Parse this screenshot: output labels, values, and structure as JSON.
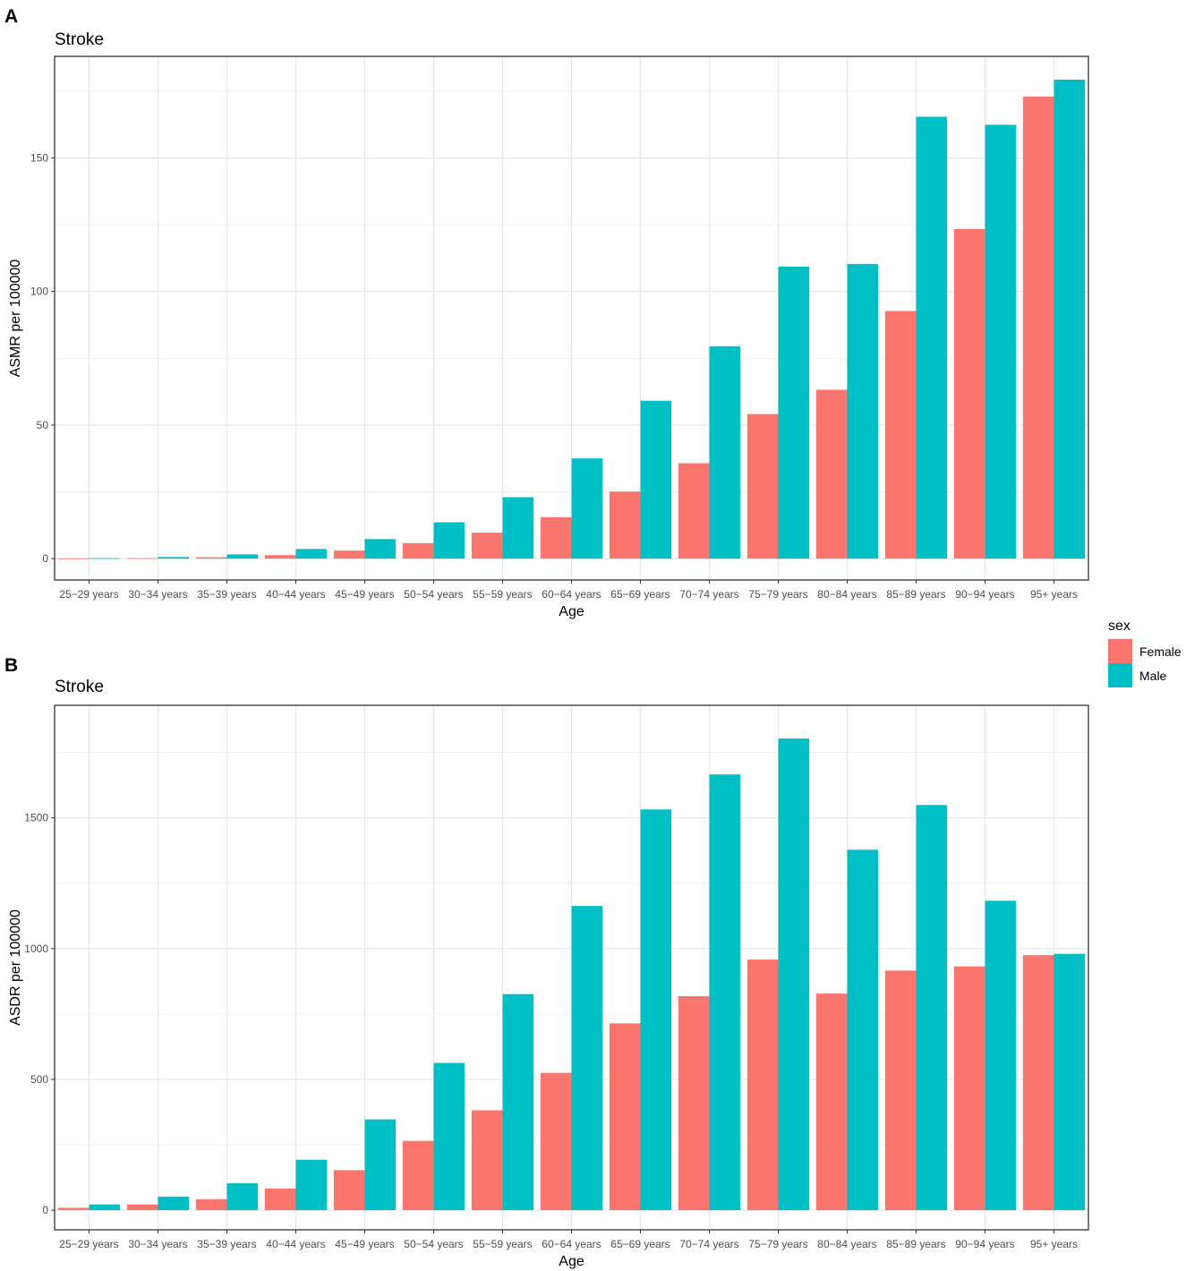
{
  "figure": {
    "legend": {
      "title": "sex",
      "items": [
        {
          "label": "Female",
          "color": "#F8766D"
        },
        {
          "label": "Male",
          "color": "#00BFC4"
        }
      ]
    }
  },
  "chart_data": [
    {
      "panel": "A",
      "type": "bar",
      "title": "Stroke",
      "xlabel": "Age",
      "ylabel": "ASMR per 100000",
      "ylim": [
        -8,
        188
      ],
      "yticks": [
        0,
        50,
        100,
        150
      ],
      "yticks_labels": [
        "0",
        "50",
        "100",
        "150"
      ],
      "categories": [
        "25−29 years",
        "30−34 years",
        "35−39 years",
        "40−44 years",
        "45−49 years",
        "50−54 years",
        "55−59 years",
        "60−64 years",
        "65−69 years",
        "70−74 years",
        "75−79 years",
        "80−84 years",
        "85−89 years",
        "90−94 years",
        "95+ years"
      ],
      "series": [
        {
          "name": "Female",
          "color": "#F8766D",
          "values": [
            0.1,
            0.2,
            0.5,
            1.3,
            3.0,
            5.8,
            9.7,
            15.5,
            25.1,
            35.7,
            54.1,
            63.2,
            92.7,
            123.4,
            173.0
          ]
        },
        {
          "name": "Male",
          "color": "#00BFC4",
          "values": [
            0.2,
            0.6,
            1.6,
            3.6,
            7.3,
            13.6,
            23.0,
            37.5,
            59.1,
            79.5,
            109.3,
            110.3,
            165.4,
            162.4,
            179.3
          ]
        }
      ]
    },
    {
      "panel": "B",
      "type": "bar",
      "title": "Stroke",
      "xlabel": "Age",
      "ylabel": "ASDR per 100000",
      "ylim": [
        -75,
        1930
      ],
      "yticks": [
        0,
        500,
        1000,
        1500
      ],
      "yticks_labels": [
        "0",
        "500",
        "1000",
        "1500"
      ],
      "categories": [
        "25−29 years",
        "30−34 years",
        "35−39 years",
        "40−44 years",
        "45−49 years",
        "50−54 years",
        "55−59 years",
        "60−64 years",
        "65−69 years",
        "70−74 years",
        "75−79 years",
        "80−84 years",
        "85−89 years",
        "90−94 years",
        "95+ years"
      ],
      "series": [
        {
          "name": "Female",
          "color": "#F8766D",
          "values": [
            9,
            22,
            42,
            83,
            153,
            265,
            382,
            525,
            714,
            818,
            958,
            828,
            916,
            932,
            975
          ]
        },
        {
          "name": "Male",
          "color": "#00BFC4",
          "values": [
            22,
            52,
            103,
            193,
            347,
            563,
            826,
            1163,
            1532,
            1666,
            1803,
            1378,
            1549,
            1183,
            980
          ]
        }
      ]
    }
  ]
}
